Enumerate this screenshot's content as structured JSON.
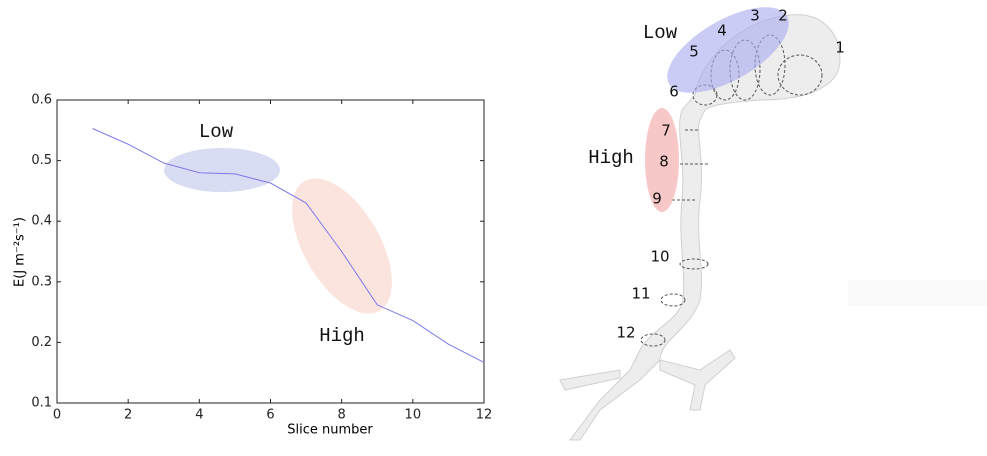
{
  "chart_data": {
    "type": "line",
    "x": [
      1,
      2,
      3,
      4,
      5,
      6,
      7,
      8,
      9,
      10,
      11,
      12
    ],
    "series": [
      {
        "color": "#7b7bea",
        "values": [
          0.553,
          0.527,
          0.496,
          0.48,
          0.478,
          0.463,
          0.43,
          0.35,
          0.262,
          0.236,
          0.197,
          0.167
        ]
      }
    ],
    "xlim": [
      0,
      12
    ],
    "xticks": [
      0,
      2,
      4,
      6,
      8,
      10,
      12
    ],
    "ylim": [
      0.1,
      0.6
    ],
    "yticks": [
      0.1,
      0.2,
      0.3,
      0.4,
      0.5,
      0.6
    ],
    "xlabel": "Slice number",
    "ylabel": "E(J m⁻²s⁻¹)",
    "annotations": [
      "Low",
      "High"
    ]
  },
  "figure": {
    "region_labels": [
      "Low",
      "High"
    ],
    "slice_labels": [
      "1",
      "2",
      "3",
      "4",
      "5",
      "6",
      "7",
      "8",
      "9",
      "10",
      "11",
      "12"
    ]
  }
}
